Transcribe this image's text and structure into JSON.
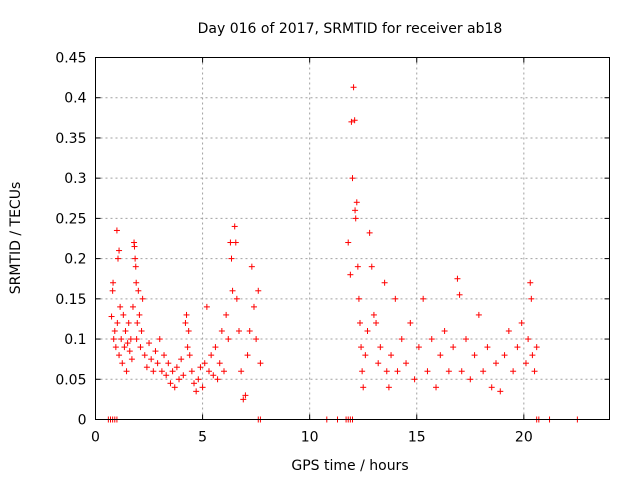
{
  "chart_data": {
    "type": "scatter",
    "title": "Day 016 of 2017, SRMTID for receiver ab18",
    "xlabel": "GPS time / hours",
    "ylabel": "SRMTID / TECUs",
    "xlim": [
      0,
      24
    ],
    "ylim": [
      0,
      0.45
    ],
    "x_ticks": [
      0,
      5,
      10,
      15,
      20
    ],
    "x_tick_labels": [
      "0",
      "5",
      "10",
      "15",
      "20"
    ],
    "y_ticks": [
      0,
      0.05,
      0.1,
      0.15,
      0.2,
      0.25,
      0.3,
      0.35,
      0.4,
      0.45
    ],
    "y_tick_labels": [
      "0",
      "0.05",
      "0.1",
      "0.15",
      "0.2",
      "0.25",
      "0.3",
      "0.35",
      "0.4",
      "0.45"
    ],
    "grid": true,
    "marker": "plus",
    "color": "#ff0000",
    "series": [
      {
        "name": "SRMTID",
        "points": [
          [
            0.6,
            0.0
          ],
          [
            0.7,
            0.0
          ],
          [
            0.8,
            0.0
          ],
          [
            0.9,
            0.0
          ],
          [
            1.0,
            0.0
          ],
          [
            0.75,
            0.128
          ],
          [
            0.8,
            0.16
          ],
          [
            0.82,
            0.17
          ],
          [
            0.85,
            0.1
          ],
          [
            0.9,
            0.11
          ],
          [
            0.95,
            0.09
          ],
          [
            1.0,
            0.235
          ],
          [
            1.02,
            0.12
          ],
          [
            1.05,
            0.2
          ],
          [
            1.1,
            0.21
          ],
          [
            1.1,
            0.08
          ],
          [
            1.15,
            0.14
          ],
          [
            1.2,
            0.1
          ],
          [
            1.25,
            0.07
          ],
          [
            1.3,
            0.13
          ],
          [
            1.35,
            0.09
          ],
          [
            1.4,
            0.11
          ],
          [
            1.45,
            0.06
          ],
          [
            1.5,
            0.095
          ],
          [
            1.55,
            0.12
          ],
          [
            1.6,
            0.085
          ],
          [
            1.65,
            0.1
          ],
          [
            1.7,
            0.075
          ],
          [
            1.75,
            0.14
          ],
          [
            1.8,
            0.22
          ],
          [
            1.82,
            0.215
          ],
          [
            1.85,
            0.2
          ],
          [
            1.88,
            0.19
          ],
          [
            1.9,
            0.17
          ],
          [
            1.92,
            0.1
          ],
          [
            1.95,
            0.12
          ],
          [
            2.0,
            0.16
          ],
          [
            2.05,
            0.13
          ],
          [
            2.1,
            0.09
          ],
          [
            2.15,
            0.11
          ],
          [
            2.2,
            0.15
          ],
          [
            2.3,
            0.08
          ],
          [
            2.4,
            0.065
          ],
          [
            2.5,
            0.095
          ],
          [
            2.6,
            0.075
          ],
          [
            2.7,
            0.06
          ],
          [
            2.8,
            0.085
          ],
          [
            2.9,
            0.07
          ],
          [
            3.0,
            0.1
          ],
          [
            3.1,
            0.06
          ],
          [
            3.2,
            0.08
          ],
          [
            3.3,
            0.055
          ],
          [
            3.4,
            0.07
          ],
          [
            3.5,
            0.045
          ],
          [
            3.6,
            0.06
          ],
          [
            3.7,
            0.04
          ],
          [
            3.8,
            0.065
          ],
          [
            3.9,
            0.05
          ],
          [
            4.0,
            0.075
          ],
          [
            4.1,
            0.055
          ],
          [
            4.2,
            0.12
          ],
          [
            4.25,
            0.13
          ],
          [
            4.3,
            0.09
          ],
          [
            4.35,
            0.11
          ],
          [
            4.4,
            0.08
          ],
          [
            4.5,
            0.06
          ],
          [
            4.6,
            0.045
          ],
          [
            4.7,
            0.035
          ],
          [
            4.8,
            0.05
          ],
          [
            4.9,
            0.065
          ],
          [
            5.0,
            0.04
          ],
          [
            5.1,
            0.07
          ],
          [
            5.2,
            0.14
          ],
          [
            5.3,
            0.06
          ],
          [
            5.4,
            0.08
          ],
          [
            5.5,
            0.055
          ],
          [
            5.6,
            0.09
          ],
          [
            5.7,
            0.05
          ],
          [
            5.8,
            0.07
          ],
          [
            5.9,
            0.11
          ],
          [
            6.0,
            0.06
          ],
          [
            6.1,
            0.13
          ],
          [
            6.2,
            0.1
          ],
          [
            6.3,
            0.22
          ],
          [
            6.35,
            0.2
          ],
          [
            6.4,
            0.16
          ],
          [
            6.5,
            0.24
          ],
          [
            6.55,
            0.22
          ],
          [
            6.6,
            0.15
          ],
          [
            6.7,
            0.11
          ],
          [
            6.8,
            0.06
          ],
          [
            6.9,
            0.025
          ],
          [
            7.0,
            0.03
          ],
          [
            7.1,
            0.08
          ],
          [
            7.2,
            0.11
          ],
          [
            7.3,
            0.19
          ],
          [
            7.4,
            0.14
          ],
          [
            7.5,
            0.1
          ],
          [
            7.6,
            0.16
          ],
          [
            7.7,
            0.07
          ],
          [
            7.6,
            0.0
          ],
          [
            7.7,
            0.0
          ],
          [
            11.7,
            0.0
          ],
          [
            11.8,
            0.0
          ],
          [
            11.9,
            0.0
          ],
          [
            12.0,
            0.0
          ],
          [
            11.8,
            0.22
          ],
          [
            11.9,
            0.18
          ],
          [
            11.95,
            0.37
          ],
          [
            12.0,
            0.3
          ],
          [
            12.05,
            0.413
          ],
          [
            12.1,
            0.372
          ],
          [
            12.12,
            0.26
          ],
          [
            12.15,
            0.25
          ],
          [
            12.2,
            0.27
          ],
          [
            12.25,
            0.19
          ],
          [
            12.3,
            0.15
          ],
          [
            12.35,
            0.12
          ],
          [
            12.4,
            0.09
          ],
          [
            12.45,
            0.06
          ],
          [
            12.5,
            0.04
          ],
          [
            12.6,
            0.08
          ],
          [
            12.7,
            0.11
          ],
          [
            12.8,
            0.232
          ],
          [
            12.9,
            0.19
          ],
          [
            13.0,
            0.13
          ],
          [
            13.1,
            0.12
          ],
          [
            13.2,
            0.07
          ],
          [
            13.3,
            0.09
          ],
          [
            13.5,
            0.17
          ],
          [
            13.6,
            0.06
          ],
          [
            13.7,
            0.04
          ],
          [
            13.8,
            0.08
          ],
          [
            14.0,
            0.15
          ],
          [
            14.1,
            0.06
          ],
          [
            14.3,
            0.1
          ],
          [
            14.5,
            0.07
          ],
          [
            14.7,
            0.12
          ],
          [
            14.9,
            0.05
          ],
          [
            15.1,
            0.09
          ],
          [
            15.3,
            0.15
          ],
          [
            15.5,
            0.06
          ],
          [
            15.7,
            0.1
          ],
          [
            15.9,
            0.04
          ],
          [
            16.1,
            0.08
          ],
          [
            16.3,
            0.11
          ],
          [
            16.5,
            0.06
          ],
          [
            16.7,
            0.09
          ],
          [
            16.9,
            0.175
          ],
          [
            17.0,
            0.155
          ],
          [
            17.1,
            0.06
          ],
          [
            17.3,
            0.1
          ],
          [
            17.5,
            0.05
          ],
          [
            17.7,
            0.08
          ],
          [
            17.9,
            0.13
          ],
          [
            18.1,
            0.06
          ],
          [
            18.3,
            0.09
          ],
          [
            18.5,
            0.04
          ],
          [
            18.7,
            0.07
          ],
          [
            18.9,
            0.035
          ],
          [
            19.1,
            0.08
          ],
          [
            19.3,
            0.11
          ],
          [
            19.5,
            0.06
          ],
          [
            19.7,
            0.09
          ],
          [
            19.9,
            0.12
          ],
          [
            20.1,
            0.07
          ],
          [
            20.2,
            0.1
          ],
          [
            20.3,
            0.17
          ],
          [
            20.35,
            0.15
          ],
          [
            20.4,
            0.08
          ],
          [
            20.5,
            0.06
          ],
          [
            20.6,
            0.09
          ],
          [
            20.6,
            0.0
          ],
          [
            20.7,
            0.0
          ],
          [
            21.2,
            0.0
          ],
          [
            22.5,
            0.0
          ],
          [
            10.8,
            0.0
          ],
          [
            11.3,
            0.0
          ]
        ]
      }
    ]
  }
}
